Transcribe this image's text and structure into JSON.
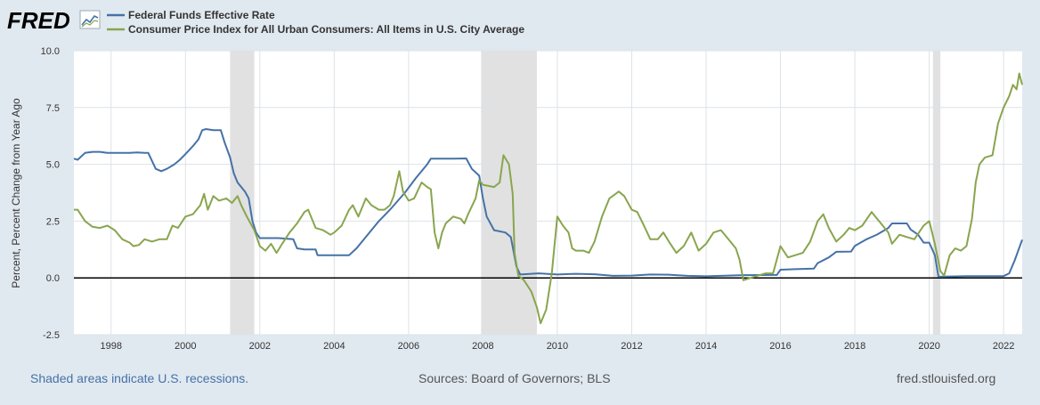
{
  "brand": {
    "logo_text": "FRED"
  },
  "footer": {
    "recession_note": "Shaded areas indicate U.S. recessions.",
    "sources": "Sources: Board of Governors; BLS",
    "site": "fred.stlouisfed.org"
  },
  "colors": {
    "background": "#e1e9f0",
    "plot_background": "#ffffff",
    "recession": "#e1e1e1",
    "grid": "#dde2e7",
    "fedfunds": "#4572a7",
    "cpi": "#89a54e",
    "axis_text": "#333333",
    "footer_blue": "#4572a7",
    "footer_gray": "#555555"
  },
  "chart_data": {
    "type": "line",
    "title": "",
    "xlabel": "",
    "ylabel": "Percent, Percent Change from Year Ago",
    "xlim": [
      1997.0,
      2022.5
    ],
    "ylim": [
      -2.5,
      10.0
    ],
    "x_ticks": [
      1998,
      2000,
      2002,
      2004,
      2006,
      2008,
      2010,
      2012,
      2014,
      2016,
      2018,
      2020,
      2022
    ],
    "x_tick_labels": [
      "1998",
      "2000",
      "2002",
      "2004",
      "2006",
      "2008",
      "2010",
      "2012",
      "2014",
      "2016",
      "2018",
      "2020",
      "2022"
    ],
    "y_ticks": [
      -2.5,
      0.0,
      2.5,
      5.0,
      7.5,
      10.0
    ],
    "y_tick_labels": [
      "-2.5",
      "0.0",
      "2.5",
      "5.0",
      "7.5",
      "10.0"
    ],
    "zero_line": 0,
    "grid": true,
    "legend_position": "top-left",
    "recessions": [
      [
        2001.2,
        2001.85
      ],
      [
        2007.95,
        2009.45
      ],
      [
        2020.1,
        2020.3
      ]
    ],
    "series": [
      {
        "name": "Federal Funds Effective Rate",
        "color": "#4572a7",
        "points": [
          [
            1997.0,
            5.25
          ],
          [
            1997.1,
            5.2
          ],
          [
            1997.3,
            5.5
          ],
          [
            1997.5,
            5.55
          ],
          [
            1997.7,
            5.55
          ],
          [
            1997.9,
            5.5
          ],
          [
            1998.1,
            5.5
          ],
          [
            1998.3,
            5.5
          ],
          [
            1998.5,
            5.5
          ],
          [
            1998.7,
            5.52
          ],
          [
            1998.9,
            5.5
          ],
          [
            1999.0,
            5.5
          ],
          [
            1999.2,
            4.8
          ],
          [
            1999.35,
            4.7
          ],
          [
            1999.5,
            4.8
          ],
          [
            1999.7,
            5.0
          ],
          [
            1999.85,
            5.2
          ],
          [
            2000.0,
            5.45
          ],
          [
            2000.2,
            5.8
          ],
          [
            2000.35,
            6.1
          ],
          [
            2000.45,
            6.5
          ],
          [
            2000.55,
            6.55
          ],
          [
            2000.75,
            6.5
          ],
          [
            2000.95,
            6.5
          ],
          [
            2001.05,
            5.98
          ],
          [
            2001.2,
            5.3
          ],
          [
            2001.3,
            4.6
          ],
          [
            2001.4,
            4.2
          ],
          [
            2001.6,
            3.8
          ],
          [
            2001.7,
            3.5
          ],
          [
            2001.8,
            2.5
          ],
          [
            2001.9,
            2.0
          ],
          [
            2002.0,
            1.75
          ],
          [
            2002.5,
            1.75
          ],
          [
            2002.9,
            1.7
          ],
          [
            2003.0,
            1.3
          ],
          [
            2003.2,
            1.25
          ],
          [
            2003.5,
            1.25
          ],
          [
            2003.55,
            1.0
          ],
          [
            2004.4,
            1.0
          ],
          [
            2004.6,
            1.3
          ],
          [
            2004.9,
            1.9
          ],
          [
            2005.2,
            2.5
          ],
          [
            2005.5,
            3.0
          ],
          [
            2005.9,
            3.75
          ],
          [
            2006.2,
            4.4
          ],
          [
            2006.5,
            5.0
          ],
          [
            2006.6,
            5.25
          ],
          [
            2007.2,
            5.25
          ],
          [
            2007.55,
            5.26
          ],
          [
            2007.7,
            4.8
          ],
          [
            2007.9,
            4.5
          ],
          [
            2008.0,
            3.5
          ],
          [
            2008.1,
            2.7
          ],
          [
            2008.3,
            2.1
          ],
          [
            2008.6,
            2.0
          ],
          [
            2008.75,
            1.8
          ],
          [
            2008.9,
            0.5
          ],
          [
            2009.0,
            0.15
          ],
          [
            2009.5,
            0.2
          ],
          [
            2010.0,
            0.15
          ],
          [
            2010.5,
            0.18
          ],
          [
            2011.0,
            0.16
          ],
          [
            2011.5,
            0.09
          ],
          [
            2012.0,
            0.1
          ],
          [
            2012.5,
            0.15
          ],
          [
            2013.0,
            0.14
          ],
          [
            2013.5,
            0.09
          ],
          [
            2014.0,
            0.07
          ],
          [
            2015.0,
            0.12
          ],
          [
            2015.9,
            0.13
          ],
          [
            2016.0,
            0.36
          ],
          [
            2016.5,
            0.39
          ],
          [
            2016.9,
            0.41
          ],
          [
            2017.0,
            0.65
          ],
          [
            2017.3,
            0.9
          ],
          [
            2017.5,
            1.15
          ],
          [
            2017.9,
            1.16
          ],
          [
            2018.0,
            1.41
          ],
          [
            2018.3,
            1.69
          ],
          [
            2018.6,
            1.91
          ],
          [
            2018.9,
            2.2
          ],
          [
            2019.0,
            2.4
          ],
          [
            2019.4,
            2.4
          ],
          [
            2019.5,
            2.13
          ],
          [
            2019.7,
            1.9
          ],
          [
            2019.85,
            1.55
          ],
          [
            2020.0,
            1.55
          ],
          [
            2020.15,
            1.0
          ],
          [
            2020.25,
            0.05
          ],
          [
            2021.0,
            0.08
          ],
          [
            2021.5,
            0.08
          ],
          [
            2022.0,
            0.08
          ],
          [
            2022.15,
            0.2
          ],
          [
            2022.3,
            0.77
          ],
          [
            2022.5,
            1.68
          ]
        ]
      },
      {
        "name": "Consumer Price Index for All Urban Consumers: All Items in U.S. City Average",
        "color": "#89a54e",
        "points": [
          [
            1997.0,
            3.0
          ],
          [
            1997.1,
            3.0
          ],
          [
            1997.3,
            2.5
          ],
          [
            1997.5,
            2.25
          ],
          [
            1997.7,
            2.2
          ],
          [
            1997.9,
            2.3
          ],
          [
            1998.1,
            2.1
          ],
          [
            1998.3,
            1.7
          ],
          [
            1998.5,
            1.55
          ],
          [
            1998.6,
            1.4
          ],
          [
            1998.75,
            1.45
          ],
          [
            1998.9,
            1.7
          ],
          [
            1999.1,
            1.6
          ],
          [
            1999.3,
            1.7
          ],
          [
            1999.5,
            1.7
          ],
          [
            1999.65,
            2.3
          ],
          [
            1999.8,
            2.2
          ],
          [
            2000.0,
            2.7
          ],
          [
            2000.2,
            2.8
          ],
          [
            2000.4,
            3.2
          ],
          [
            2000.5,
            3.7
          ],
          [
            2000.6,
            3.0
          ],
          [
            2000.75,
            3.6
          ],
          [
            2000.9,
            3.4
          ],
          [
            2001.1,
            3.5
          ],
          [
            2001.25,
            3.3
          ],
          [
            2001.4,
            3.6
          ],
          [
            2001.5,
            3.2
          ],
          [
            2001.65,
            2.7
          ],
          [
            2001.85,
            2.1
          ],
          [
            2002.0,
            1.4
          ],
          [
            2002.15,
            1.2
          ],
          [
            2002.3,
            1.5
          ],
          [
            2002.45,
            1.1
          ],
          [
            2002.6,
            1.5
          ],
          [
            2002.8,
            2.0
          ],
          [
            2003.0,
            2.4
          ],
          [
            2003.2,
            2.9
          ],
          [
            2003.3,
            3.0
          ],
          [
            2003.5,
            2.2
          ],
          [
            2003.7,
            2.1
          ],
          [
            2003.9,
            1.9
          ],
          [
            2004.0,
            2.0
          ],
          [
            2004.2,
            2.3
          ],
          [
            2004.4,
            3.0
          ],
          [
            2004.5,
            3.2
          ],
          [
            2004.65,
            2.7
          ],
          [
            2004.85,
            3.5
          ],
          [
            2005.0,
            3.2
          ],
          [
            2005.2,
            3.0
          ],
          [
            2005.35,
            3.0
          ],
          [
            2005.5,
            3.2
          ],
          [
            2005.6,
            3.6
          ],
          [
            2005.75,
            4.7
          ],
          [
            2005.85,
            3.8
          ],
          [
            2006.0,
            3.4
          ],
          [
            2006.15,
            3.5
          ],
          [
            2006.35,
            4.2
          ],
          [
            2006.5,
            4.0
          ],
          [
            2006.6,
            3.9
          ],
          [
            2006.7,
            2.0
          ],
          [
            2006.8,
            1.3
          ],
          [
            2006.9,
            2.0
          ],
          [
            2007.0,
            2.4
          ],
          [
            2007.2,
            2.7
          ],
          [
            2007.4,
            2.6
          ],
          [
            2007.5,
            2.4
          ],
          [
            2007.6,
            2.8
          ],
          [
            2007.8,
            3.5
          ],
          [
            2007.9,
            4.3
          ],
          [
            2008.0,
            4.1
          ],
          [
            2008.3,
            4.0
          ],
          [
            2008.45,
            4.2
          ],
          [
            2008.55,
            5.4
          ],
          [
            2008.7,
            5.0
          ],
          [
            2008.8,
            3.7
          ],
          [
            2008.85,
            1.1
          ],
          [
            2008.95,
            0.1
          ],
          [
            2009.1,
            -0.1
          ],
          [
            2009.3,
            -0.6
          ],
          [
            2009.45,
            -1.3
          ],
          [
            2009.55,
            -2.0
          ],
          [
            2009.7,
            -1.4
          ],
          [
            2009.85,
            0.2
          ],
          [
            2010.0,
            2.7
          ],
          [
            2010.15,
            2.3
          ],
          [
            2010.3,
            2.0
          ],
          [
            2010.4,
            1.3
          ],
          [
            2010.5,
            1.2
          ],
          [
            2010.7,
            1.2
          ],
          [
            2010.85,
            1.1
          ],
          [
            2011.0,
            1.6
          ],
          [
            2011.2,
            2.7
          ],
          [
            2011.4,
            3.5
          ],
          [
            2011.65,
            3.8
          ],
          [
            2011.8,
            3.6
          ],
          [
            2012.0,
            3.0
          ],
          [
            2012.15,
            2.9
          ],
          [
            2012.3,
            2.4
          ],
          [
            2012.5,
            1.7
          ],
          [
            2012.7,
            1.7
          ],
          [
            2012.85,
            2.0
          ],
          [
            2013.0,
            1.6
          ],
          [
            2013.2,
            1.1
          ],
          [
            2013.4,
            1.4
          ],
          [
            2013.6,
            2.0
          ],
          [
            2013.8,
            1.2
          ],
          [
            2014.0,
            1.5
          ],
          [
            2014.2,
            2.0
          ],
          [
            2014.4,
            2.1
          ],
          [
            2014.6,
            1.7
          ],
          [
            2014.8,
            1.3
          ],
          [
            2014.9,
            0.8
          ],
          [
            2015.0,
            -0.1
          ],
          [
            2015.2,
            0.0
          ],
          [
            2015.4,
            0.1
          ],
          [
            2015.6,
            0.2
          ],
          [
            2015.8,
            0.2
          ],
          [
            2016.0,
            1.4
          ],
          [
            2016.2,
            0.9
          ],
          [
            2016.4,
            1.0
          ],
          [
            2016.6,
            1.1
          ],
          [
            2016.8,
            1.6
          ],
          [
            2017.0,
            2.5
          ],
          [
            2017.15,
            2.8
          ],
          [
            2017.3,
            2.2
          ],
          [
            2017.5,
            1.6
          ],
          [
            2017.7,
            1.9
          ],
          [
            2017.85,
            2.2
          ],
          [
            2018.0,
            2.1
          ],
          [
            2018.2,
            2.3
          ],
          [
            2018.45,
            2.9
          ],
          [
            2018.55,
            2.7
          ],
          [
            2018.75,
            2.3
          ],
          [
            2018.9,
            2.0
          ],
          [
            2019.0,
            1.5
          ],
          [
            2019.2,
            1.9
          ],
          [
            2019.4,
            1.8
          ],
          [
            2019.6,
            1.7
          ],
          [
            2019.85,
            2.3
          ],
          [
            2020.0,
            2.5
          ],
          [
            2020.15,
            1.5
          ],
          [
            2020.3,
            0.3
          ],
          [
            2020.4,
            0.1
          ],
          [
            2020.55,
            1.0
          ],
          [
            2020.7,
            1.3
          ],
          [
            2020.85,
            1.2
          ],
          [
            2021.0,
            1.4
          ],
          [
            2021.15,
            2.6
          ],
          [
            2021.25,
            4.2
          ],
          [
            2021.35,
            5.0
          ],
          [
            2021.5,
            5.3
          ],
          [
            2021.7,
            5.4
          ],
          [
            2021.85,
            6.8
          ],
          [
            2022.0,
            7.5
          ],
          [
            2022.15,
            8.0
          ],
          [
            2022.25,
            8.5
          ],
          [
            2022.35,
            8.3
          ],
          [
            2022.42,
            9.0
          ],
          [
            2022.5,
            8.5
          ]
        ]
      }
    ]
  }
}
